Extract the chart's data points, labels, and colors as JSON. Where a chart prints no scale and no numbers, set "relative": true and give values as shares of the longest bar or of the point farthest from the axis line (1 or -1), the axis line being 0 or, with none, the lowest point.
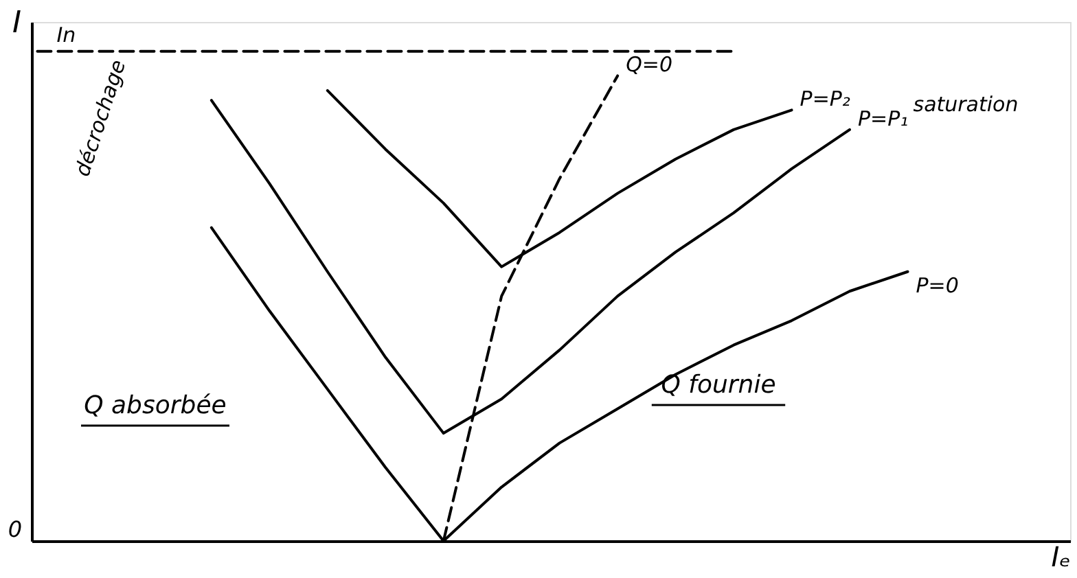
{
  "chart_data": {
    "type": "line",
    "relative": true,
    "ylabel": "I",
    "xlabel": "Iₑ",
    "categories": [
      null,
      null,
      null,
      null,
      null,
      null,
      null,
      null,
      null,
      null,
      null,
      null,
      null,
      null,
      null,
      null,
      null
    ],
    "series": [
      {
        "name": "In",
        "color": "#000000",
        "line_style": "dashed",
        "values": [
          1,
          1,
          1,
          1,
          1,
          1,
          1,
          1,
          1,
          1,
          1,
          1,
          1,
          null,
          null,
          null,
          null
        ]
      },
      {
        "name": "P=0",
        "color": "#000000",
        "values": [
          null,
          null,
          null,
          0.64,
          0.47,
          0.31,
          0.15,
          0.0,
          0.11,
          0.2,
          0.27,
          0.34,
          0.4,
          0.45,
          0.51,
          0.55,
          null
        ]
      },
      {
        "name": "P=P₁",
        "color": "#000000",
        "values": [
          null,
          null,
          null,
          0.9,
          0.73,
          0.55,
          0.375,
          0.22,
          0.29,
          0.39,
          0.5,
          0.59,
          0.67,
          0.76,
          0.84,
          null,
          null
        ]
      },
      {
        "name": "P=P₂",
        "color": "#000000",
        "values": [
          null,
          null,
          null,
          null,
          null,
          0.92,
          0.8,
          0.69,
          0.56,
          0.63,
          0.71,
          0.78,
          0.84,
          0.88,
          null,
          null,
          null
        ]
      },
      {
        "name": "Q=0",
        "color": "#000000",
        "line_style": "dashed",
        "values": [
          null,
          null,
          null,
          null,
          null,
          null,
          null,
          0.0,
          0.5,
          0.74,
          0.95,
          null,
          null,
          null,
          null,
          null,
          null
        ]
      }
    ],
    "annotations": [
      "0",
      "décrochage",
      "saturation",
      "Q absorbée",
      "Q fournie"
    ],
    "grid": false,
    "legend": false,
    "marker": "none",
    "line_style": "solid"
  }
}
